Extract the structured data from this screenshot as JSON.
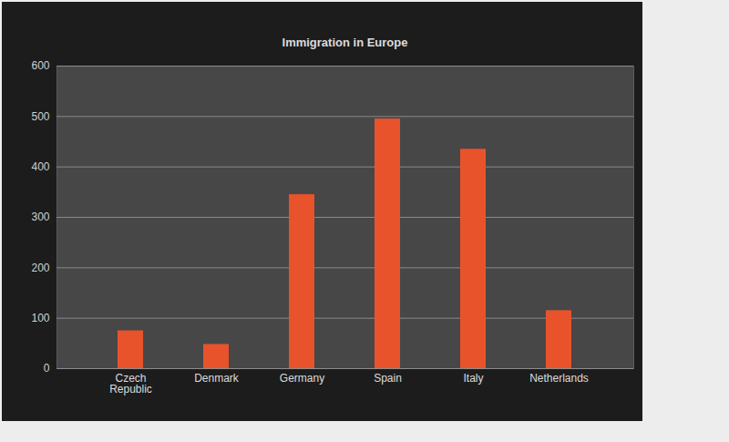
{
  "chart_data": {
    "type": "bar",
    "title": "Immigration in Europe",
    "categories": [
      "Czech Republic",
      "Denmark",
      "Germany",
      "Spain",
      "Italy",
      "Netherlands"
    ],
    "values": [
      75,
      48,
      345,
      495,
      435,
      115
    ],
    "color": "#e8532b",
    "ylim": [
      0,
      600
    ],
    "yticks": [
      0,
      100,
      200,
      300,
      400,
      500,
      600
    ],
    "grid": true
  }
}
